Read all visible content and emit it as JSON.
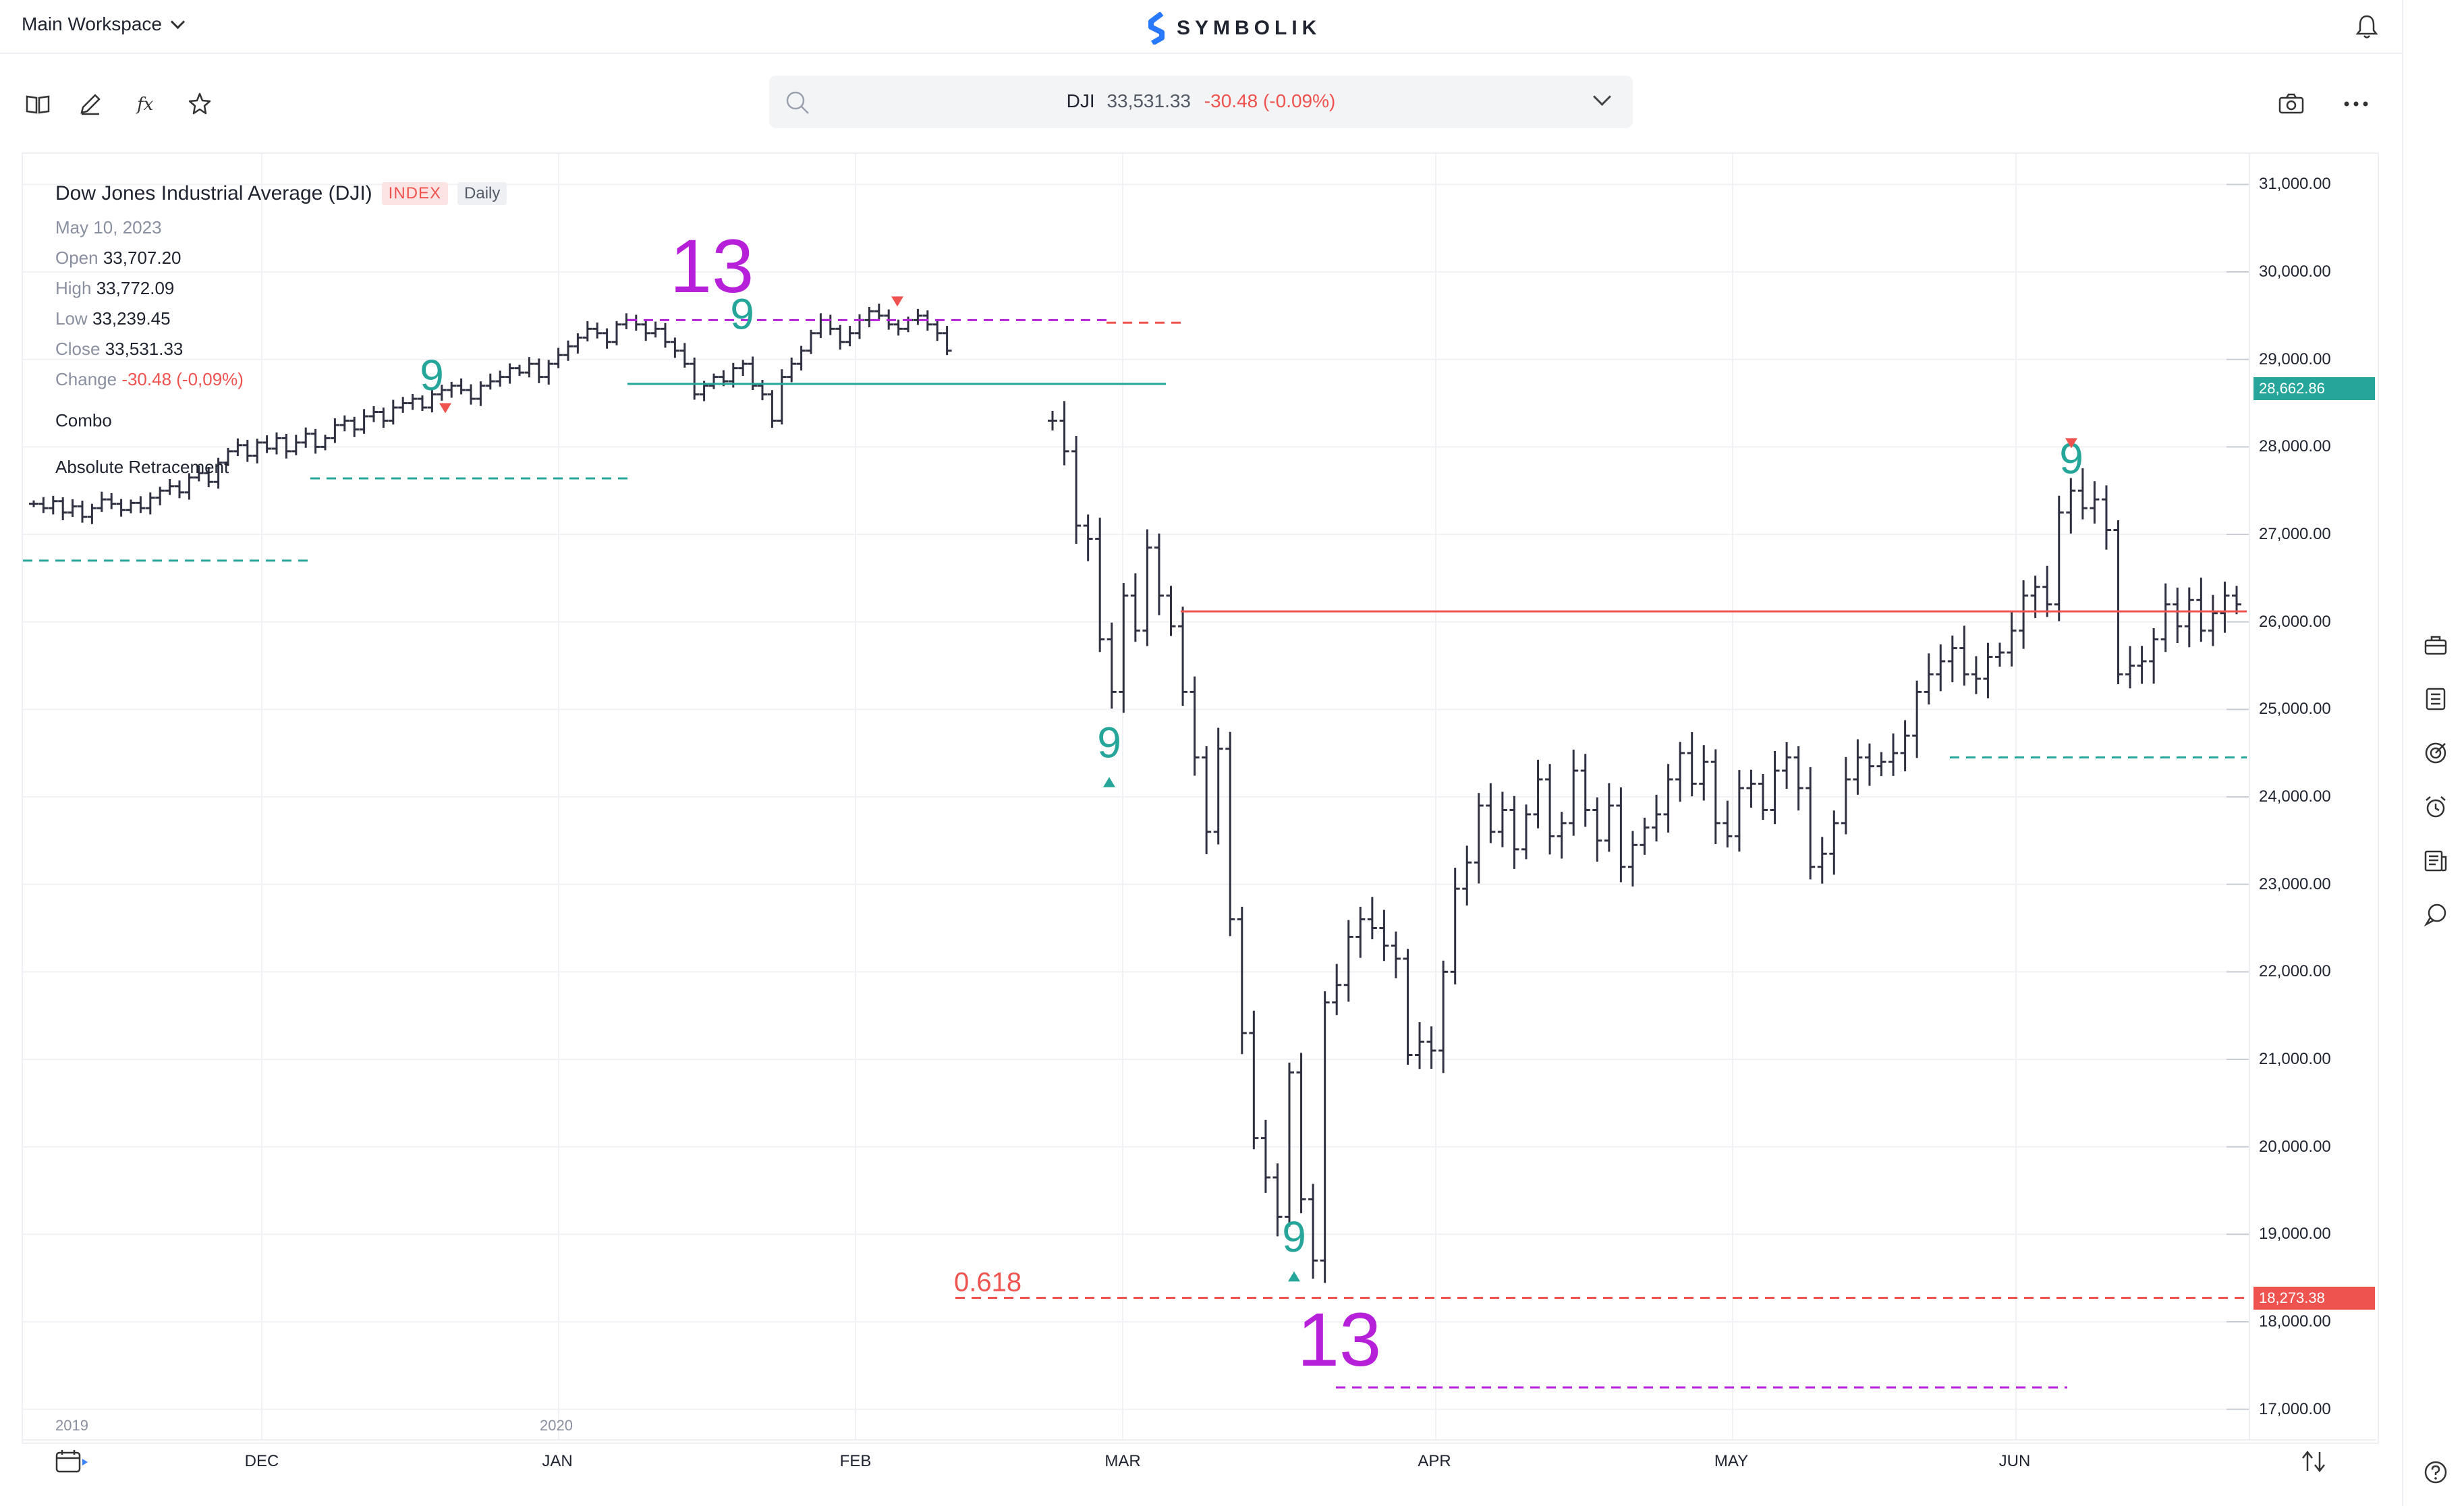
{
  "app": {
    "workspace": "Main Workspace",
    "brand": "SYMBOLIK"
  },
  "quote": {
    "symbol": "DJI",
    "last": "33,531.33",
    "change": "-30.48 (-0.09%)"
  },
  "legend": {
    "title": "Dow Jones Industrial Average (DJI)",
    "badge_index": "INDEX",
    "badge_interval": "Daily",
    "date": "May 10, 2023",
    "open_label": "Open",
    "open": "33,707.20",
    "high_label": "High",
    "high": "33,772.09",
    "low_label": "Low",
    "low": "33,239.45",
    "close_label": "Close",
    "close": "33,531.33",
    "change_label": "Change",
    "change": "-30.48 (-0,09%)",
    "indicator1": "Combo",
    "indicator2": "Absolute Retracement"
  },
  "icons": {
    "toolbar": [
      "book-icon",
      "pencil-icon",
      "function-icon",
      "star-icon"
    ],
    "right": [
      "camera-icon",
      "more-icon"
    ],
    "sidebar": [
      "briefcase-icon",
      "list-icon",
      "target-icon",
      "alarm-icon",
      "news-icon",
      "chat-icon",
      "help-icon"
    ]
  },
  "colors": {
    "bar": "#2f3142",
    "green": "#26a69a",
    "red": "#ef5350",
    "magenta": "#b620d8",
    "accent_blue": "#3b82f6"
  },
  "chart_data": {
    "type": "ohlc",
    "x_labels": [
      "DEC",
      "JAN",
      "FEB",
      "MAR",
      "APR",
      "MAY",
      "JUN"
    ],
    "year_labels": [
      "2019",
      "2020"
    ],
    "y_ticks": [
      "31,000.00",
      "30,000.00",
      "29,000.00",
      "28,000.00",
      "27,000.00",
      "26,000.00",
      "25,000.00",
      "24,000.00",
      "23,000.00",
      "22,000.00",
      "21,000.00",
      "20,000.00",
      "19,000.00",
      "18,000.00",
      "17,000.00"
    ],
    "ylim": [
      16650,
      31350
    ],
    "series": [
      {
        "segment": 1,
        "closes": [
          27350,
          27300,
          27380,
          27250,
          27320,
          27200,
          27300,
          27400,
          27350,
          27280,
          27360,
          27300,
          27420,
          27500,
          27550,
          27480,
          27650,
          27700,
          27600,
          27820,
          27950,
          28020,
          27900,
          28050,
          27980,
          28100,
          27950,
          28050,
          28150,
          28000,
          28100,
          28250,
          28300,
          28200,
          28350,
          28400,
          28300,
          28450,
          28500,
          28550,
          28450,
          28600,
          28650,
          28700,
          28650,
          28550,
          28700,
          28750,
          28800,
          28900,
          28850,
          28950,
          28800,
          28950,
          29050,
          29150,
          29250,
          29350,
          29300,
          29200,
          29400,
          29450,
          29400,
          29300,
          29350,
          29200,
          29100,
          28950,
          28600,
          28700,
          28800,
          28750,
          28900,
          28950,
          28700,
          28600,
          28300,
          28800,
          28950,
          29100,
          29300,
          29450,
          29350,
          29200,
          29300,
          29450,
          29550,
          29500,
          29400,
          29350,
          29450,
          29500,
          29400,
          29300,
          29100
        ]
      },
      {
        "segment": 2,
        "closes": [
          28300,
          27950,
          27100,
          26950,
          25800,
          25200,
          26300,
          25900,
          26850,
          26300,
          25950,
          25200,
          24450,
          23600,
          24550,
          22600,
          21300,
          20100,
          19650,
          19200,
          20850,
          19400,
          18700,
          21650,
          21850,
          22400,
          22600,
          22500,
          22300,
          22150,
          21050,
          21200,
          21100,
          22000,
          22950,
          23250,
          23900,
          23600,
          23850,
          23400,
          23800,
          24200,
          23550,
          23700,
          24300,
          23850,
          23500,
          23900,
          23200,
          23450,
          23650,
          23800,
          24200,
          24500,
          24150,
          24400,
          23700,
          23550,
          24100,
          24150,
          23850,
          24300,
          24450,
          24100,
          23200,
          23350,
          23700,
          24200,
          24450,
          24350,
          24400,
          24500,
          24700,
          25200,
          25400,
          25550,
          25700,
          25400,
          25350,
          25600,
          25650,
          25900,
          26300,
          26400,
          26200,
          27250,
          27500,
          27300,
          27400,
          27050,
          25400,
          25500,
          25550,
          25800,
          26200,
          25950,
          26250,
          25900,
          26100,
          26300,
          26200
        ]
      }
    ],
    "annotations": {
      "td9_labels": [
        "9",
        "9",
        "9",
        "9",
        "9"
      ],
      "td13_labels": [
        "13",
        "13"
      ],
      "retracement_label": "0.618",
      "price_tags": [
        "28,662.86",
        "18,273.38"
      ]
    }
  }
}
